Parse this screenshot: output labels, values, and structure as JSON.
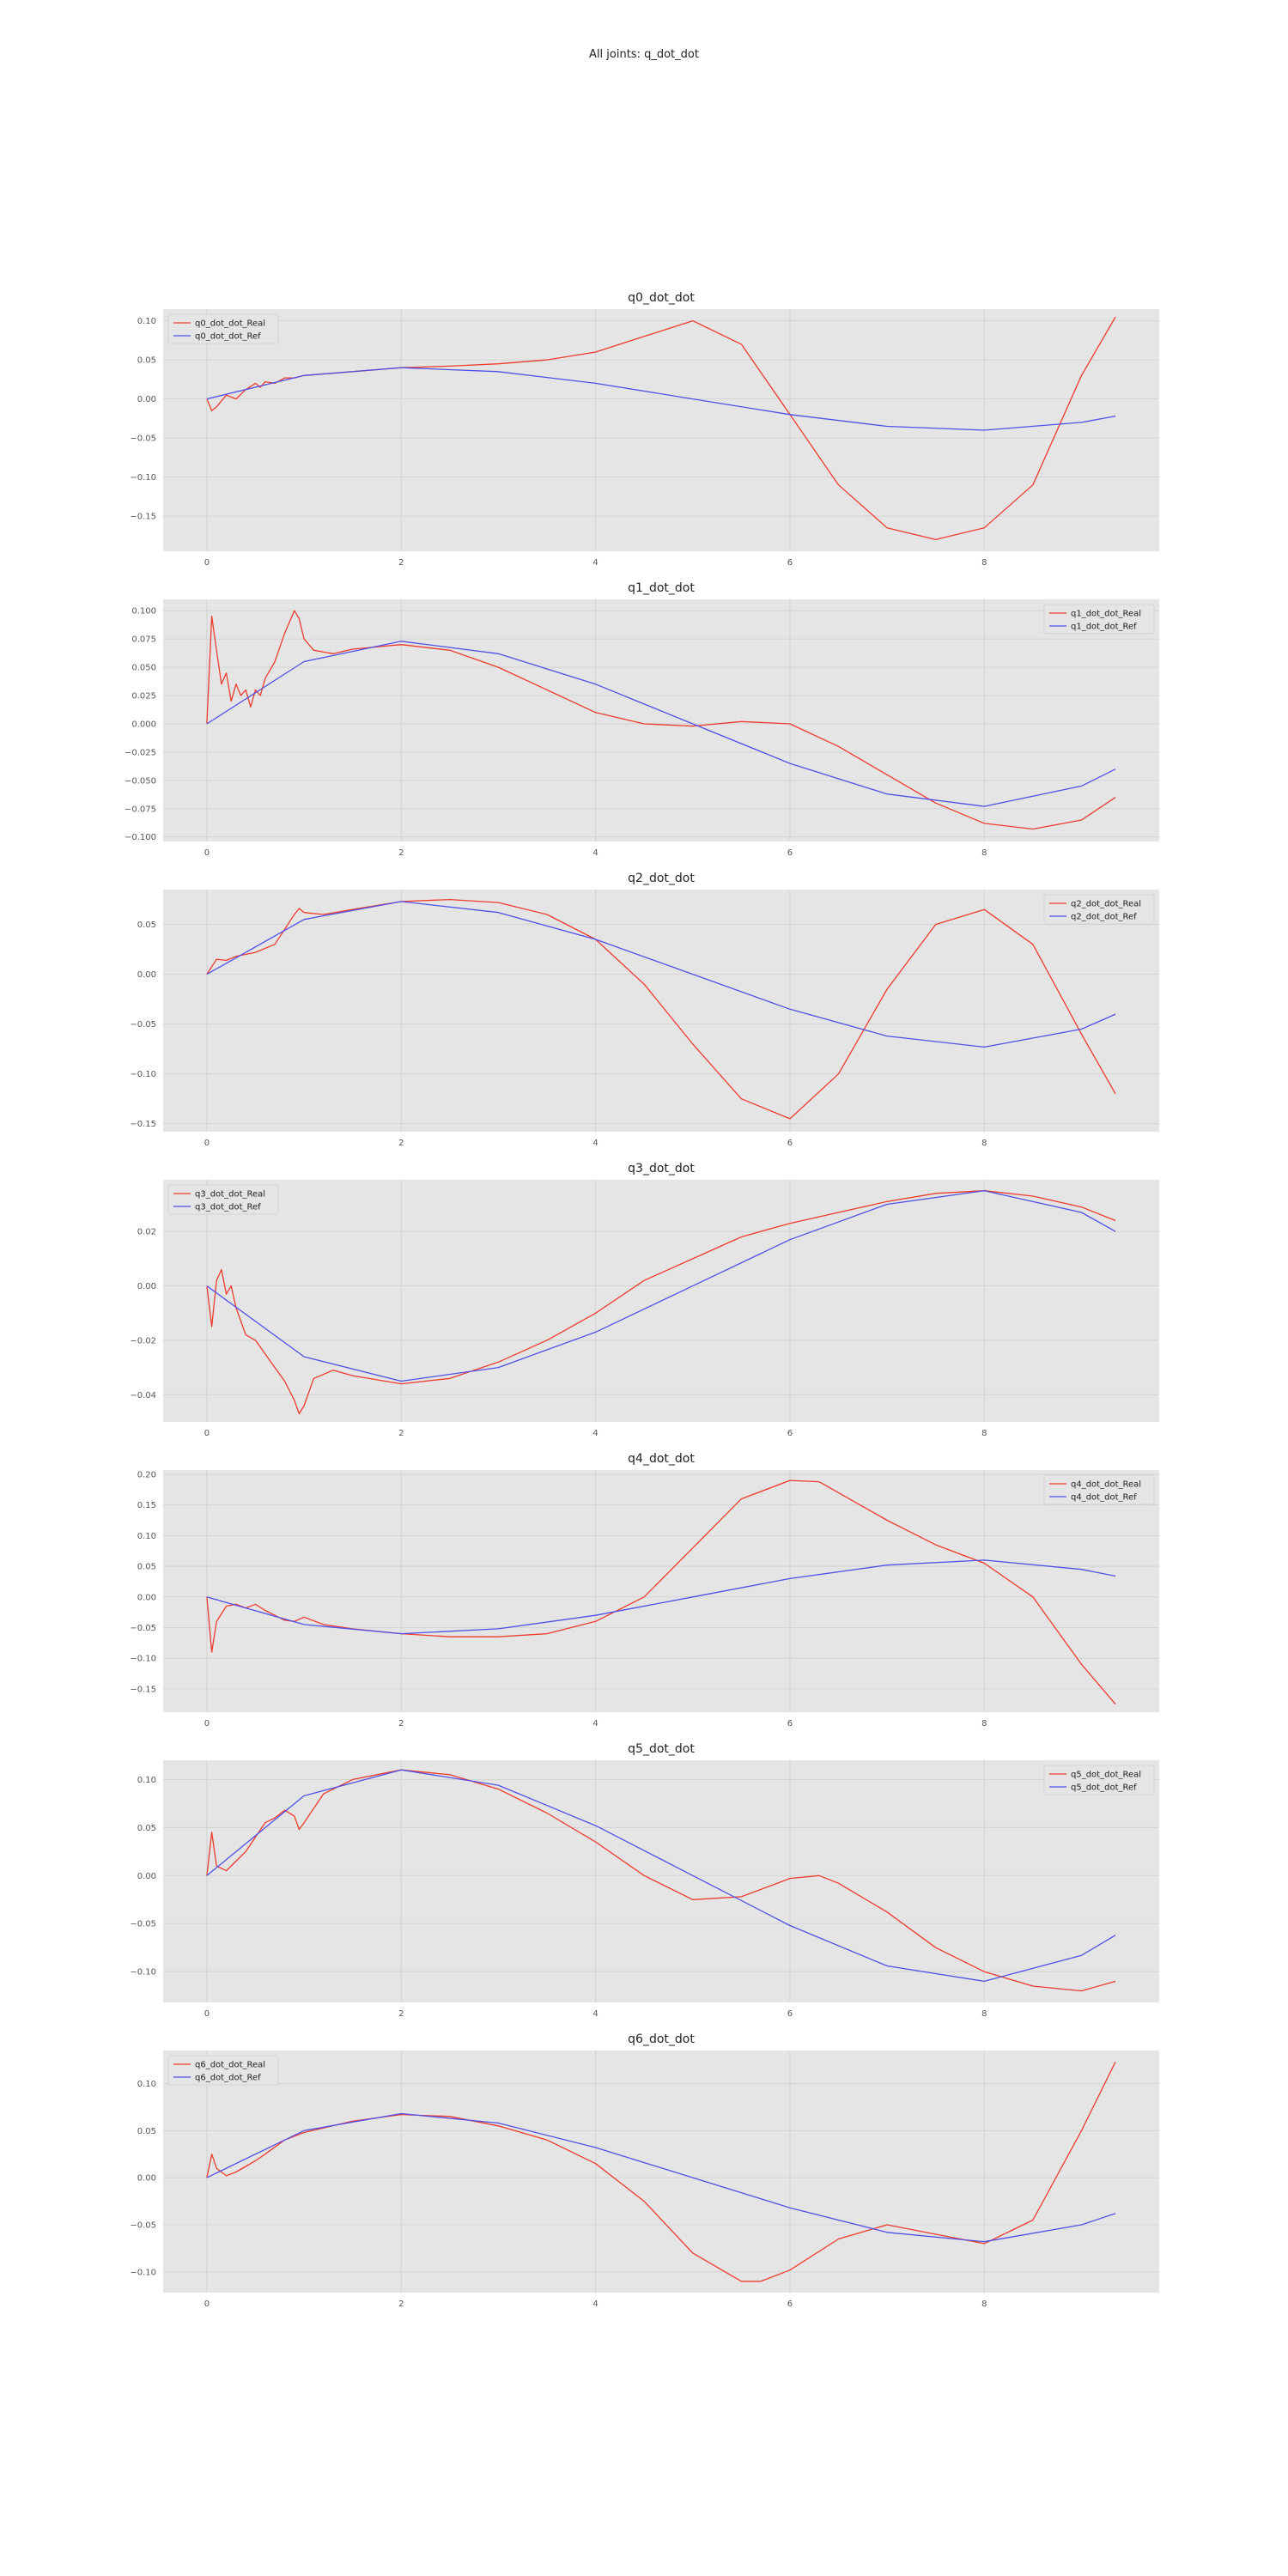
{
  "figure": {
    "suptitle": "All joints: q_dot_dot"
  },
  "colors": {
    "real": "#ef3b2c",
    "ref": "#5050e8",
    "axes_bg": "#e5e5e5",
    "grid": "#cfcfcf"
  },
  "chart_data": [
    {
      "type": "line",
      "title": "q0_dot_dot",
      "xlabel": "",
      "ylabel": "",
      "xlim": [
        -0.45,
        9.8
      ],
      "ylim": [
        -0.195,
        0.115
      ],
      "xticks": [
        0,
        2,
        4,
        6,
        8
      ],
      "yticks": [
        -0.15,
        -0.1,
        -0.05,
        0.0,
        0.05,
        0.1
      ],
      "ytick_labels": [
        "−0.15",
        "−0.10",
        "−0.05",
        "0.00",
        "0.05",
        "0.10"
      ],
      "grid": true,
      "legend": "upper left",
      "series": [
        {
          "name": "q0_dot_dot_Real",
          "color": "#ef3b2c",
          "x": [
            0,
            0.05,
            0.1,
            0.2,
            0.3,
            0.4,
            0.5,
            0.55,
            0.6,
            0.7,
            0.8,
            0.9,
            1.0,
            1.5,
            2.0,
            2.5,
            3.0,
            3.5,
            4.0,
            4.5,
            5.0,
            5.5,
            6.0,
            6.5,
            7.0,
            7.5,
            8.0,
            8.5,
            9.0,
            9.35
          ],
          "y": [
            0.0,
            -0.015,
            -0.01,
            0.005,
            0.0,
            0.012,
            0.02,
            0.015,
            0.022,
            0.02,
            0.027,
            0.027,
            0.03,
            0.035,
            0.04,
            0.042,
            0.045,
            0.05,
            0.06,
            0.08,
            0.1,
            0.07,
            -0.02,
            -0.11,
            -0.165,
            -0.18,
            -0.165,
            -0.11,
            0.03,
            0.105
          ]
        },
        {
          "name": "q0_dot_dot_Ref",
          "color": "#5050e8",
          "x": [
            0,
            1,
            2,
            3,
            4,
            5,
            6,
            7,
            8,
            9,
            9.35
          ],
          "y": [
            0.0,
            0.03,
            0.04,
            0.035,
            0.02,
            0.0,
            -0.02,
            -0.035,
            -0.04,
            -0.03,
            -0.022
          ]
        }
      ]
    },
    {
      "type": "line",
      "title": "q1_dot_dot",
      "xlabel": "",
      "ylabel": "",
      "xlim": [
        -0.45,
        9.8
      ],
      "ylim": [
        -0.104,
        0.11
      ],
      "xticks": [
        0,
        2,
        4,
        6,
        8
      ],
      "yticks": [
        -0.1,
        -0.075,
        -0.05,
        -0.025,
        0.0,
        0.025,
        0.05,
        0.075,
        0.1
      ],
      "ytick_labels": [
        "−0.100",
        "−0.075",
        "−0.050",
        "−0.025",
        "0.000",
        "0.025",
        "0.050",
        "0.075",
        "0.100"
      ],
      "grid": true,
      "legend": "upper right",
      "series": [
        {
          "name": "q1_dot_dot_Real",
          "color": "#ef3b2c",
          "x": [
            0,
            0.05,
            0.1,
            0.15,
            0.2,
            0.25,
            0.3,
            0.35,
            0.4,
            0.45,
            0.5,
            0.55,
            0.6,
            0.7,
            0.8,
            0.9,
            0.95,
            1.0,
            1.1,
            1.3,
            1.5,
            2.0,
            2.5,
            3.0,
            3.5,
            4.0,
            4.5,
            5.0,
            5.5,
            6.0,
            6.5,
            7.0,
            7.5,
            8.0,
            8.5,
            9.0,
            9.35
          ],
          "y": [
            0.0,
            0.095,
            0.065,
            0.035,
            0.045,
            0.02,
            0.035,
            0.025,
            0.03,
            0.015,
            0.03,
            0.025,
            0.04,
            0.055,
            0.08,
            0.1,
            0.093,
            0.075,
            0.065,
            0.062,
            0.066,
            0.07,
            0.065,
            0.05,
            0.03,
            0.01,
            0.0,
            -0.002,
            0.002,
            0.0,
            -0.02,
            -0.045,
            -0.07,
            -0.088,
            -0.093,
            -0.085,
            -0.065
          ]
        },
        {
          "name": "q1_dot_dot_Ref",
          "color": "#5050e8",
          "x": [
            0,
            1,
            2,
            3,
            4,
            5,
            6,
            7,
            8,
            9,
            9.35
          ],
          "y": [
            0.0,
            0.055,
            0.073,
            0.062,
            0.035,
            0.0,
            -0.035,
            -0.062,
            -0.073,
            -0.055,
            -0.04
          ]
        }
      ]
    },
    {
      "type": "line",
      "title": "q2_dot_dot",
      "xlabel": "",
      "ylabel": "",
      "xlim": [
        -0.45,
        9.8
      ],
      "ylim": [
        -0.158,
        0.085
      ],
      "xticks": [
        0,
        2,
        4,
        6,
        8
      ],
      "yticks": [
        -0.15,
        -0.1,
        -0.05,
        0.0,
        0.05
      ],
      "ytick_labels": [
        "−0.15",
        "−0.10",
        "−0.05",
        "0.00",
        "0.05"
      ],
      "grid": true,
      "legend": "upper right",
      "series": [
        {
          "name": "q2_dot_dot_Real",
          "color": "#ef3b2c",
          "x": [
            0,
            0.1,
            0.2,
            0.3,
            0.5,
            0.7,
            0.9,
            0.95,
            1.0,
            1.2,
            1.5,
            2.0,
            2.5,
            3.0,
            3.5,
            4.0,
            4.5,
            5.0,
            5.5,
            6.0,
            6.5,
            7.0,
            7.5,
            8.0,
            8.5,
            9.0,
            9.35
          ],
          "y": [
            0.0,
            0.015,
            0.014,
            0.018,
            0.022,
            0.03,
            0.06,
            0.066,
            0.062,
            0.06,
            0.065,
            0.073,
            0.075,
            0.072,
            0.06,
            0.035,
            -0.01,
            -0.07,
            -0.125,
            -0.145,
            -0.1,
            -0.015,
            0.05,
            0.065,
            0.03,
            -0.06,
            -0.12
          ]
        },
        {
          "name": "q2_dot_dot_Ref",
          "color": "#5050e8",
          "x": [
            0,
            1,
            2,
            3,
            4,
            5,
            6,
            7,
            8,
            9,
            9.35
          ],
          "y": [
            0.0,
            0.055,
            0.073,
            0.062,
            0.035,
            0.0,
            -0.035,
            -0.062,
            -0.073,
            -0.055,
            -0.04
          ]
        }
      ]
    },
    {
      "type": "line",
      "title": "q3_dot_dot",
      "xlabel": "",
      "ylabel": "",
      "xlim": [
        -0.45,
        9.8
      ],
      "ylim": [
        -0.05,
        0.039
      ],
      "xticks": [
        0,
        2,
        4,
        6,
        8
      ],
      "yticks": [
        -0.04,
        -0.02,
        0.0,
        0.02
      ],
      "ytick_labels": [
        "−0.04",
        "−0.02",
        "0.00",
        "0.02"
      ],
      "grid": true,
      "legend": "upper left",
      "series": [
        {
          "name": "q3_dot_dot_Real",
          "color": "#ef3b2c",
          "x": [
            0,
            0.05,
            0.1,
            0.15,
            0.2,
            0.25,
            0.3,
            0.4,
            0.5,
            0.6,
            0.7,
            0.8,
            0.9,
            0.95,
            1.0,
            1.1,
            1.3,
            1.5,
            2.0,
            2.5,
            3.0,
            3.5,
            4.0,
            4.5,
            5.0,
            5.5,
            6.0,
            6.5,
            7.0,
            7.5,
            8.0,
            8.5,
            9.0,
            9.35
          ],
          "y": [
            0.0,
            -0.015,
            0.002,
            0.006,
            -0.003,
            0.0,
            -0.008,
            -0.018,
            -0.02,
            -0.025,
            -0.03,
            -0.035,
            -0.042,
            -0.047,
            -0.044,
            -0.034,
            -0.031,
            -0.033,
            -0.036,
            -0.034,
            -0.028,
            -0.02,
            -0.01,
            0.002,
            0.01,
            0.018,
            0.023,
            0.027,
            0.031,
            0.034,
            0.035,
            0.033,
            0.029,
            0.024
          ]
        },
        {
          "name": "q3_dot_dot_Ref",
          "color": "#5050e8",
          "x": [
            0,
            1,
            2,
            3,
            4,
            5,
            6,
            7,
            8,
            9,
            9.35
          ],
          "y": [
            0.0,
            -0.026,
            -0.035,
            -0.03,
            -0.017,
            0.0,
            0.017,
            0.03,
            0.035,
            0.027,
            0.02
          ]
        }
      ]
    },
    {
      "type": "line",
      "title": "q4_dot_dot",
      "xlabel": "",
      "ylabel": "",
      "xlim": [
        -0.45,
        9.8
      ],
      "ylim": [
        -0.188,
        0.207
      ],
      "xticks": [
        0,
        2,
        4,
        6,
        8
      ],
      "yticks": [
        -0.15,
        -0.1,
        -0.05,
        0.0,
        0.05,
        0.1,
        0.15,
        0.2
      ],
      "ytick_labels": [
        "−0.15",
        "−0.10",
        "−0.05",
        "0.00",
        "0.05",
        "0.10",
        "0.15",
        "0.20"
      ],
      "grid": true,
      "legend": "upper right",
      "series": [
        {
          "name": "q4_dot_dot_Real",
          "color": "#ef3b2c",
          "x": [
            0,
            0.05,
            0.1,
            0.2,
            0.3,
            0.4,
            0.5,
            0.6,
            0.7,
            0.8,
            0.9,
            1.0,
            1.2,
            1.5,
            2.0,
            2.5,
            3.0,
            3.5,
            4.0,
            4.5,
            5.0,
            5.5,
            6.0,
            6.3,
            6.5,
            7.0,
            7.5,
            8.0,
            8.5,
            9.0,
            9.35
          ],
          "y": [
            0.0,
            -0.09,
            -0.04,
            -0.015,
            -0.012,
            -0.018,
            -0.012,
            -0.022,
            -0.03,
            -0.038,
            -0.04,
            -0.033,
            -0.045,
            -0.052,
            -0.06,
            -0.065,
            -0.065,
            -0.06,
            -0.04,
            0.0,
            0.08,
            0.16,
            0.19,
            0.188,
            0.17,
            0.125,
            0.085,
            0.055,
            0.0,
            -0.11,
            -0.175
          ]
        },
        {
          "name": "q4_dot_dot_Ref",
          "color": "#5050e8",
          "x": [
            0,
            1,
            2,
            3,
            4,
            5,
            6,
            7,
            8,
            9,
            9.35
          ],
          "y": [
            0.0,
            -0.045,
            -0.06,
            -0.052,
            -0.03,
            0.0,
            0.03,
            0.052,
            0.06,
            0.045,
            0.034
          ]
        }
      ]
    },
    {
      "type": "line",
      "title": "q5_dot_dot",
      "xlabel": "",
      "ylabel": "",
      "xlim": [
        -0.45,
        9.8
      ],
      "ylim": [
        -0.132,
        0.12
      ],
      "xticks": [
        0,
        2,
        4,
        6,
        8
      ],
      "yticks": [
        -0.1,
        -0.05,
        0.0,
        0.05,
        0.1
      ],
      "ytick_labels": [
        "−0.10",
        "−0.05",
        "0.00",
        "0.05",
        "0.10"
      ],
      "grid": true,
      "legend": "upper right",
      "series": [
        {
          "name": "q5_dot_dot_Real",
          "color": "#ef3b2c",
          "x": [
            0,
            0.05,
            0.1,
            0.2,
            0.3,
            0.4,
            0.5,
            0.6,
            0.7,
            0.8,
            0.9,
            0.95,
            1.0,
            1.2,
            1.5,
            2.0,
            2.5,
            3.0,
            3.5,
            4.0,
            4.5,
            5.0,
            5.5,
            6.0,
            6.3,
            6.5,
            7.0,
            7.5,
            8.0,
            8.5,
            9.0,
            9.35
          ],
          "y": [
            0.0,
            0.045,
            0.01,
            0.005,
            0.015,
            0.025,
            0.04,
            0.055,
            0.06,
            0.068,
            0.062,
            0.048,
            0.055,
            0.085,
            0.1,
            0.11,
            0.105,
            0.09,
            0.065,
            0.035,
            0.0,
            -0.025,
            -0.022,
            -0.003,
            0.0,
            -0.008,
            -0.038,
            -0.075,
            -0.1,
            -0.115,
            -0.12,
            -0.11
          ]
        },
        {
          "name": "q5_dot_dot_Ref",
          "color": "#5050e8",
          "x": [
            0,
            1,
            2,
            3,
            4,
            5,
            6,
            7,
            8,
            9,
            9.35
          ],
          "y": [
            0.0,
            0.083,
            0.11,
            0.094,
            0.052,
            0.0,
            -0.052,
            -0.094,
            -0.11,
            -0.083,
            -0.062
          ]
        }
      ]
    },
    {
      "type": "line",
      "title": "q6_dot_dot",
      "xlabel": "",
      "ylabel": "",
      "xlim": [
        -0.45,
        9.8
      ],
      "ylim": [
        -0.122,
        0.135
      ],
      "xticks": [
        0,
        2,
        4,
        6,
        8
      ],
      "yticks": [
        -0.1,
        -0.05,
        0.0,
        0.05,
        0.1
      ],
      "ytick_labels": [
        "−0.10",
        "−0.05",
        "0.00",
        "0.05",
        "0.10"
      ],
      "grid": true,
      "legend": "upper left",
      "series": [
        {
          "name": "q6_dot_dot_Real",
          "color": "#ef3b2c",
          "x": [
            0,
            0.05,
            0.1,
            0.2,
            0.3,
            0.4,
            0.5,
            0.6,
            0.8,
            1.0,
            1.5,
            2.0,
            2.5,
            3.0,
            3.5,
            4.0,
            4.5,
            5.0,
            5.5,
            5.7,
            6.0,
            6.5,
            7.0,
            7.5,
            8.0,
            8.5,
            9.0,
            9.35
          ],
          "y": [
            0.0,
            0.025,
            0.01,
            0.002,
            0.006,
            0.012,
            0.018,
            0.025,
            0.04,
            0.048,
            0.06,
            0.067,
            0.065,
            0.055,
            0.04,
            0.015,
            -0.025,
            -0.08,
            -0.11,
            -0.11,
            -0.098,
            -0.065,
            -0.05,
            -0.06,
            -0.07,
            -0.045,
            0.05,
            0.123
          ]
        },
        {
          "name": "q6_dot_dot_Ref",
          "color": "#5050e8",
          "x": [
            0,
            1,
            2,
            3,
            4,
            5,
            6,
            7,
            8,
            9,
            9.35
          ],
          "y": [
            0.0,
            0.05,
            0.068,
            0.058,
            0.032,
            0.0,
            -0.032,
            -0.058,
            -0.068,
            -0.05,
            -0.038
          ]
        }
      ]
    }
  ]
}
